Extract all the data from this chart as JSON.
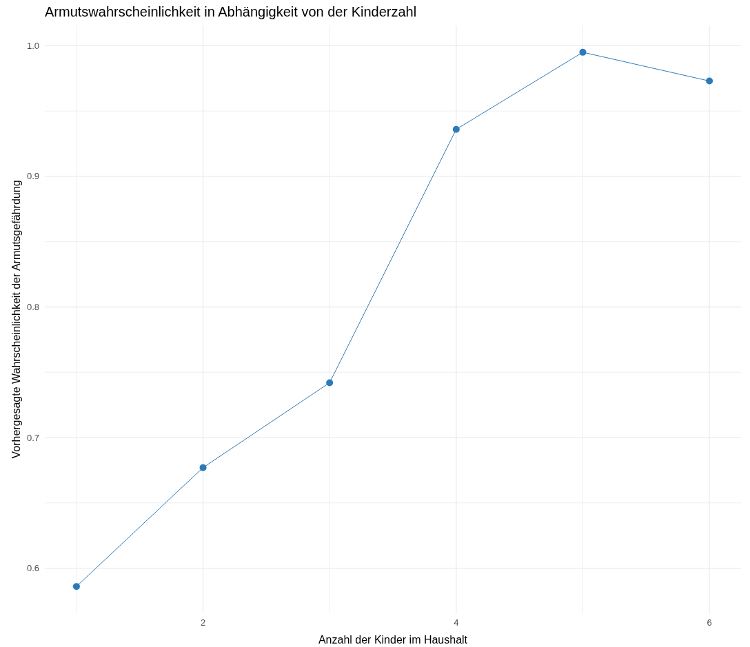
{
  "chart_data": {
    "type": "line",
    "title": "Armutswahrscheinlichkeit in Abhängigkeit von der Kinderzahl",
    "xlabel": "Anzahl der Kinder im Haushalt",
    "ylabel": "Vorhergesagte Wahrscheinlichkeit der Armutsgefährdung",
    "x": [
      1,
      2,
      3,
      4,
      5,
      6
    ],
    "series": [
      {
        "color": "#2b7bba",
        "values": [
          0.586,
          0.677,
          0.742,
          0.936,
          0.995,
          0.973
        ]
      }
    ],
    "xlim": [
      0.75,
      6.25
    ],
    "xticks": [
      {
        "value": 1,
        "label": null
      },
      2,
      {
        "value": 3,
        "label": null
      },
      4,
      {
        "value": 5,
        "label": null
      },
      6
    ],
    "ylim": [
      0.5655,
      1.0155
    ],
    "yticks": [
      0.6,
      {
        "value": 0.65,
        "label": null
      },
      0.7,
      {
        "value": 0.75,
        "label": null
      },
      0.8,
      {
        "value": 0.85,
        "label": null
      },
      0.9,
      {
        "value": 0.95,
        "label": null
      },
      {
        "value": 1,
        "label": "1.0"
      }
    ],
    "grid": true,
    "marker": "circle",
    "line_style": "solid"
  }
}
